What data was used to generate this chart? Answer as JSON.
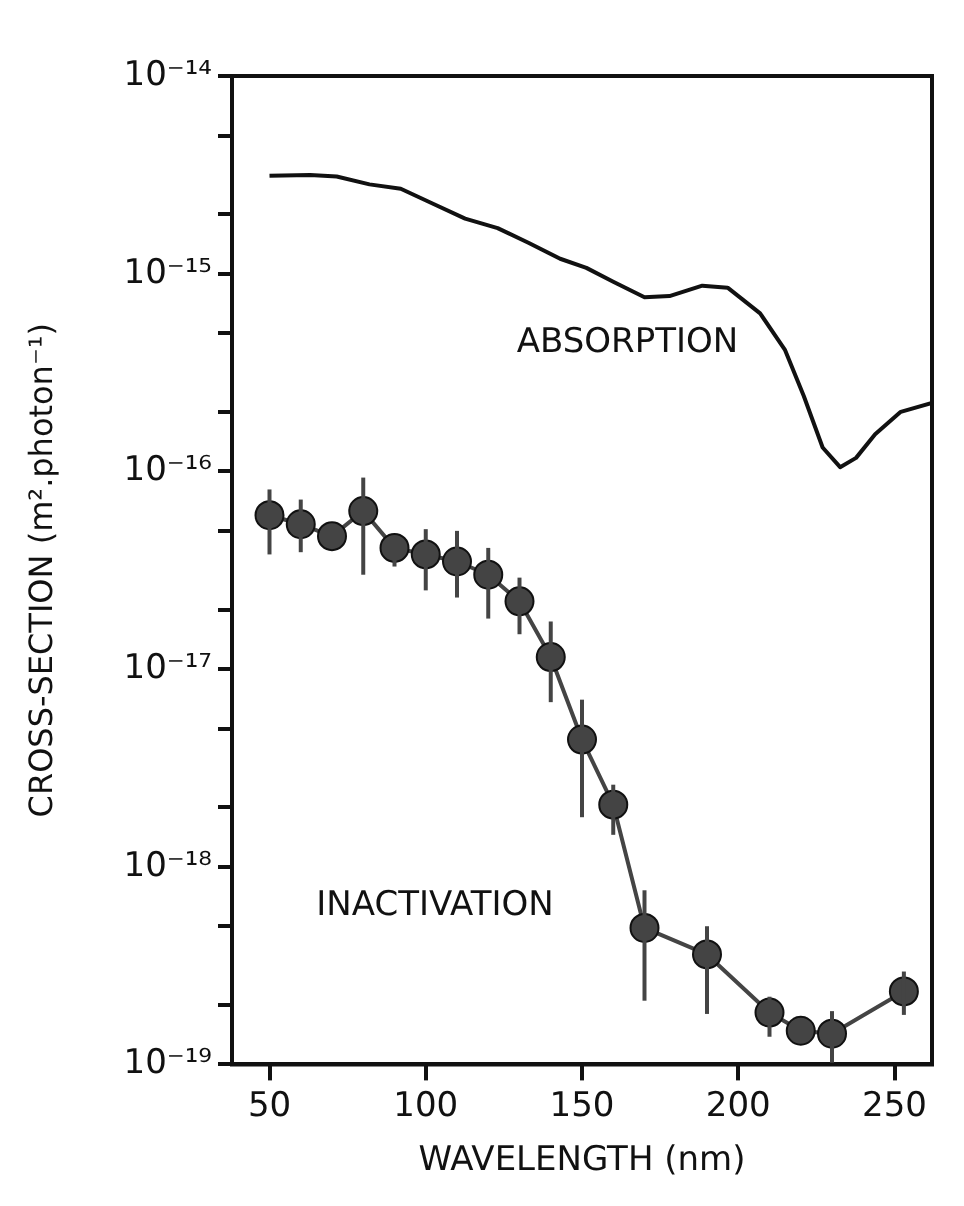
{
  "chart_data": {
    "type": "line",
    "xlabel": "WAVELENGTH (nm)",
    "ylabel": "CROSS-SECTION (m².photon⁻¹)",
    "log": "y",
    "xlim": [
      38,
      262
    ],
    "xticks": [
      50,
      100,
      150,
      200,
      250
    ],
    "ylim": [
      1e-19,
      1e-14
    ],
    "yticks": [
      {
        "value": 1e-19,
        "label": "10⁻¹⁹"
      },
      {
        "value": 1e-18,
        "label": "10⁻¹⁸"
      },
      {
        "value": 1e-17,
        "label": "10⁻¹⁷"
      },
      {
        "value": 1e-16,
        "label": "10⁻¹⁶"
      },
      {
        "value": 1e-15,
        "label": "10⁻¹⁵"
      },
      {
        "value": 1e-14,
        "label": "10⁻¹⁴"
      },
      {
        "value": 2e-19,
        "label": null
      },
      {
        "value": 5e-19,
        "label": null
      },
      {
        "value": 2e-18,
        "label": null
      },
      {
        "value": 5e-18,
        "label": null
      },
      {
        "value": 2e-17,
        "label": null
      },
      {
        "value": 5e-17,
        "label": null
      },
      {
        "value": 2e-16,
        "label": null
      },
      {
        "value": 5e-16,
        "label": null
      },
      {
        "value": 2e-15,
        "label": null
      },
      {
        "value": 5e-15,
        "label": null
      }
    ],
    "grid": false,
    "line_style": "solid",
    "series": [
      {
        "name": "ABSORPTION",
        "marker": "none",
        "color": "#111111",
        "x": [
          50,
          63,
          71.5,
          82,
          92,
          102.5,
          112.6,
          123,
          133,
          143,
          151.4,
          160,
          170,
          178,
          188.5,
          196.6,
          207,
          215,
          221,
          227,
          232.6,
          237.7,
          243.8,
          252,
          262
        ],
        "values": [
          3.13e-15,
          3.16e-15,
          3.1e-15,
          2.83e-15,
          2.69e-15,
          2.25e-15,
          1.9e-15,
          1.7e-15,
          1.43e-15,
          1.19e-15,
          1.07e-15,
          9.1e-16,
          7.6e-16,
          7.7e-16,
          8.7e-16,
          8.5e-16,
          6.3e-16,
          4.1e-16,
          2.4e-16,
          1.32e-16,
          1.05e-16,
          1.17e-16,
          1.54e-16,
          2e-16,
          2.22e-16
        ]
      },
      {
        "name": "INACTIVATION",
        "marker": "circle",
        "color": "#444444",
        "x": [
          50,
          60,
          70,
          80,
          90,
          100,
          110,
          120,
          130,
          140,
          150,
          160,
          170,
          190,
          210,
          220,
          230,
          253
        ],
        "values": [
          6e-17,
          5.4e-17,
          4.7e-17,
          6.3e-17,
          4.1e-17,
          3.8e-17,
          3.5e-17,
          3e-17,
          2.2e-17,
          1.15e-17,
          4.4e-18,
          2.06e-18,
          4.9e-19,
          3.6e-19,
          1.83e-19,
          1.48e-19,
          1.43e-19,
          2.34e-19
        ],
        "errors": [
          [
            3.8e-17,
            8.1e-17
          ],
          [
            3.9e-17,
            7.2e-17
          ],
          null,
          [
            3e-17,
            9.3e-17
          ],
          [
            3.3e-17,
            4.7e-17
          ],
          [
            2.5e-17,
            5.1e-17
          ],
          [
            2.3e-17,
            5e-17
          ],
          [
            1.8e-17,
            4.1e-17
          ],
          [
            1.5e-17,
            2.9e-17
          ],
          [
            6.8e-18,
            1.74e-17
          ],
          [
            1.78e-18,
            7e-18
          ],
          [
            1.45e-18,
            2.6e-18
          ],
          [
            2.1e-19,
            7.6e-19
          ],
          [
            1.8e-19,
            5e-19
          ],
          [
            1.38e-19,
            2.2e-19
          ],
          null,
          [
            1.02e-19,
            1.86e-19
          ],
          [
            1.78e-19,
            2.95e-19
          ]
        ]
      }
    ]
  }
}
